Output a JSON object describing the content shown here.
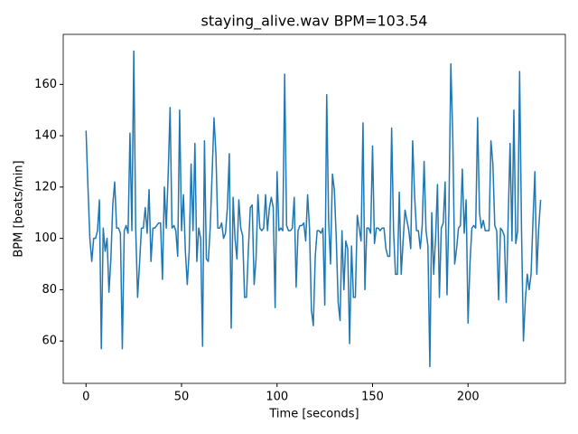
{
  "chart_data": {
    "type": "line",
    "title": "staying_alive.wav BPM=103.54",
    "x_label": "Time [seconds]",
    "y_label": "BPM [beats/min]",
    "x": [
      0,
      1,
      2,
      3,
      4,
      5,
      6,
      7,
      8,
      9,
      10,
      11,
      12,
      13,
      14,
      15,
      16,
      17,
      18,
      19,
      20,
      21,
      22,
      23,
      24,
      25,
      26,
      27,
      28,
      29,
      30,
      31,
      32,
      33,
      34,
      35,
      36,
      37,
      38,
      39,
      40,
      41,
      42,
      43,
      44,
      45,
      46,
      47,
      48,
      49,
      50,
      51,
      52,
      53,
      54,
      55,
      56,
      57,
      58,
      59,
      60,
      61,
      62,
      63,
      64,
      65,
      66,
      67,
      68,
      69,
      70,
      71,
      72,
      73,
      74,
      75,
      76,
      77,
      78,
      79,
      80,
      81,
      82,
      83,
      84,
      85,
      86,
      87,
      88,
      89,
      90,
      91,
      92,
      93,
      94,
      95,
      96,
      97,
      98,
      99,
      100,
      101,
      102,
      103,
      104,
      105,
      106,
      107,
      108,
      109,
      110,
      111,
      112,
      113,
      114,
      115,
      116,
      117,
      118,
      119,
      120,
      121,
      122,
      123,
      124,
      125,
      126,
      127,
      128,
      129,
      130,
      131,
      132,
      133,
      134,
      135,
      136,
      137,
      138,
      139,
      140,
      141,
      142,
      143,
      144,
      145,
      146,
      147,
      148,
      149,
      150,
      151,
      152,
      153,
      154,
      155,
      156,
      157,
      158,
      159,
      160,
      161,
      162,
      163,
      164,
      165,
      166,
      167,
      168,
      169,
      170,
      171,
      172,
      173,
      174,
      175,
      176,
      177,
      178,
      179,
      180,
      181,
      182,
      183,
      184,
      185,
      186,
      187,
      188,
      189,
      190,
      191,
      192,
      193,
      194,
      195,
      196,
      197,
      198,
      199,
      200,
      201,
      202,
      203,
      204,
      205,
      206,
      207,
      208,
      209,
      210,
      211,
      212,
      213,
      214,
      215,
      216,
      217,
      218,
      219,
      220,
      221,
      222,
      223,
      224,
      225,
      226,
      227,
      228,
      229,
      230,
      231,
      232,
      233,
      234,
      235,
      236,
      237,
      238
    ],
    "series": [
      {
        "color": "#1f77b4",
        "values": [
          142,
          120,
          100,
          91,
          100,
          100,
          103,
          115,
          57,
          104,
          95,
          100,
          79,
          92,
          113,
          122,
          104,
          104,
          102,
          57,
          103,
          105,
          102,
          141,
          103,
          173,
          104,
          77,
          90,
          104,
          104,
          112,
          102,
          119,
          91,
          104,
          104,
          105,
          106,
          106,
          84,
          120,
          104,
          125,
          151,
          104,
          105,
          103,
          93,
          150,
          103,
          117,
          95,
          82,
          95,
          129,
          103,
          137,
          91,
          104,
          100,
          58,
          138,
          92,
          91,
          104,
          125,
          147,
          133,
          104,
          104,
          106,
          100,
          102,
          112,
          133,
          65,
          116,
          100,
          92,
          115,
          104,
          101,
          77,
          77,
          96,
          112,
          113,
          82,
          92,
          117,
          104,
          103,
          104,
          117,
          103,
          112,
          116,
          112,
          73,
          126,
          103,
          104,
          103,
          164,
          105,
          103,
          103,
          104,
          116,
          81,
          103,
          105,
          105,
          106,
          99,
          117,
          104,
          72,
          66,
          93,
          103,
          103,
          102,
          104,
          74,
          156,
          107,
          90,
          125,
          119,
          100,
          75,
          68,
          103,
          80,
          99,
          96,
          59,
          97,
          77,
          77,
          109,
          104,
          99,
          145,
          80,
          104,
          104,
          102,
          136,
          98,
          104,
          104,
          103,
          104,
          104,
          96,
          93,
          93,
          143,
          103,
          86,
          86,
          118,
          86,
          99,
          111,
          107,
          103,
          96,
          138,
          117,
          103,
          103,
          96,
          105,
          130,
          103,
          97,
          50,
          110,
          86,
          100,
          121,
          77,
          104,
          106,
          122,
          78,
          112,
          168,
          140,
          90,
          96,
          104,
          105,
          127,
          102,
          115,
          67,
          90,
          104,
          105,
          104,
          147,
          110,
          104,
          107,
          103,
          103,
          103,
          138,
          129,
          105,
          103,
          76,
          104,
          103,
          101,
          75,
          107,
          137,
          99,
          150,
          98,
          103,
          165,
          103,
          60,
          76,
          86,
          80,
          86,
          107,
          126,
          86,
          104,
          115
        ]
      }
    ],
    "xlim": [
      -11.95,
      250.95
    ],
    "ylim": [
      43.5,
      179.5
    ],
    "xticks": [
      0,
      50,
      100,
      150,
      200
    ],
    "yticks": [
      60,
      80,
      100,
      120,
      140,
      160
    ]
  }
}
